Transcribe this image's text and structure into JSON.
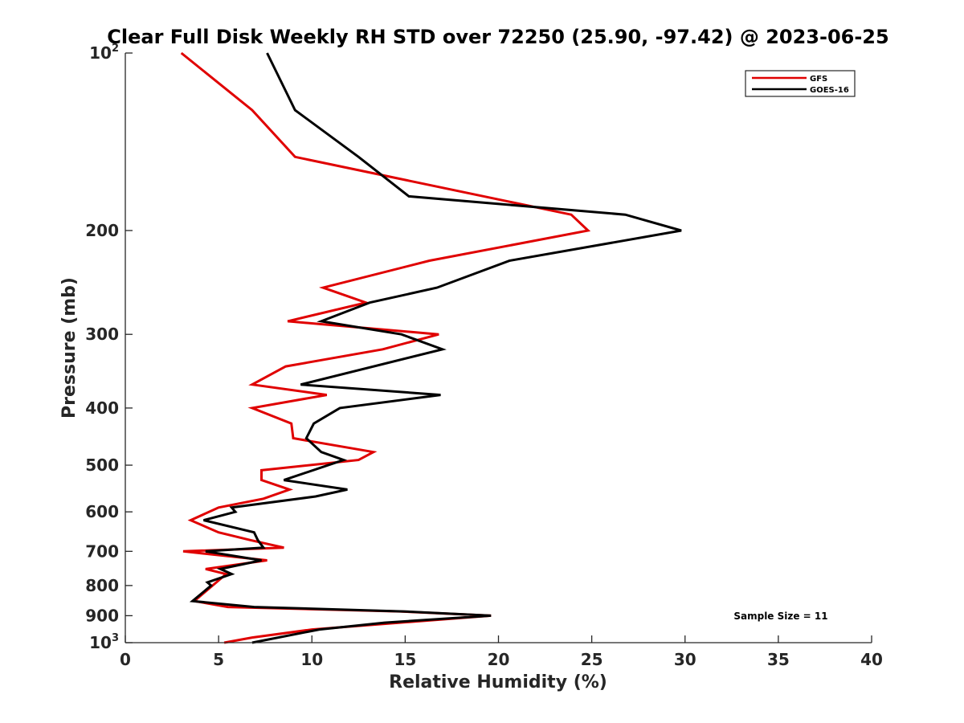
{
  "chart_data": {
    "type": "line",
    "title": "Clear Full Disk Weekly RH STD over 72250 (25.90, -97.42) @ 2023-06-25",
    "xlabel": "Relative Humidity (%)",
    "ylabel": "Pressure (mb)",
    "xlim": [
      0,
      40
    ],
    "ylim": [
      100,
      1000
    ],
    "y_scale": "log",
    "y_reversed": true,
    "grid": false,
    "legend_placement": "top-right",
    "x_ticks": [
      0,
      5,
      10,
      15,
      20,
      25,
      30,
      35,
      40
    ],
    "x_tick_labels": [
      "0",
      "5",
      "10",
      "15",
      "20",
      "25",
      "30",
      "35",
      "40"
    ],
    "y_ticks": [
      200,
      300,
      400,
      500,
      600,
      700,
      800,
      900
    ],
    "y_tick_labels": [
      "200",
      "300",
      "400",
      "500",
      "600",
      "700",
      "800",
      "900"
    ],
    "y_end_labels": {
      "top": {
        "base": "10",
        "exp": "2"
      },
      "bottom": {
        "base": "10",
        "exp": "3"
      }
    },
    "annotation": "Sample Size = 11",
    "series": [
      {
        "name": "GFS",
        "color": "#e00000",
        "points": [
          [
            3.0,
            100
          ],
          [
            6.8,
            125
          ],
          [
            9.1,
            150
          ],
          [
            23.9,
            188
          ],
          [
            24.8,
            200
          ],
          [
            16.3,
            225
          ],
          [
            10.6,
            250
          ],
          [
            12.9,
            265
          ],
          [
            8.7,
            285
          ],
          [
            16.8,
            300
          ],
          [
            13.8,
            318
          ],
          [
            8.6,
            340
          ],
          [
            6.8,
            365
          ],
          [
            10.8,
            380
          ],
          [
            6.8,
            400
          ],
          [
            8.9,
            425
          ],
          [
            9.0,
            450
          ],
          [
            13.3,
            475
          ],
          [
            12.5,
            490
          ],
          [
            7.3,
            510
          ],
          [
            7.3,
            530
          ],
          [
            8.8,
            550
          ],
          [
            7.4,
            570
          ],
          [
            5.0,
            590
          ],
          [
            3.5,
            620
          ],
          [
            5.0,
            650
          ],
          [
            6.7,
            670
          ],
          [
            8.5,
            690
          ],
          [
            3.1,
            700
          ],
          [
            7.6,
            725
          ],
          [
            4.3,
            750
          ],
          [
            5.4,
            765
          ],
          [
            3.7,
            850
          ],
          [
            5.5,
            870
          ],
          [
            14.7,
            885
          ],
          [
            19.6,
            900
          ],
          [
            10.0,
            950
          ],
          [
            6.8,
            980
          ],
          [
            5.3,
            1000
          ]
        ]
      },
      {
        "name": "GOES-16",
        "color": "#000000",
        "points": [
          [
            7.6,
            100
          ],
          [
            9.1,
            125
          ],
          [
            12.5,
            150
          ],
          [
            15.2,
            175
          ],
          [
            26.8,
            188
          ],
          [
            29.8,
            200
          ],
          [
            20.6,
            225
          ],
          [
            16.7,
            250
          ],
          [
            13.1,
            265
          ],
          [
            10.5,
            285
          ],
          [
            14.8,
            300
          ],
          [
            17.0,
            318
          ],
          [
            9.4,
            365
          ],
          [
            16.9,
            380
          ],
          [
            11.5,
            400
          ],
          [
            10.1,
            425
          ],
          [
            9.7,
            450
          ],
          [
            10.5,
            475
          ],
          [
            11.7,
            490
          ],
          [
            8.5,
            530
          ],
          [
            11.9,
            550
          ],
          [
            10.2,
            565
          ],
          [
            5.7,
            590
          ],
          [
            5.9,
            600
          ],
          [
            4.2,
            620
          ],
          [
            6.9,
            650
          ],
          [
            7.1,
            670
          ],
          [
            7.4,
            690
          ],
          [
            4.3,
            700
          ],
          [
            7.3,
            725
          ],
          [
            5.1,
            750
          ],
          [
            5.7,
            765
          ],
          [
            4.4,
            790
          ],
          [
            4.6,
            800
          ],
          [
            3.6,
            850
          ],
          [
            6.9,
            870
          ],
          [
            14.9,
            885
          ],
          [
            19.6,
            900
          ],
          [
            13.9,
            925
          ],
          [
            10.4,
            950
          ],
          [
            6.8,
            1000
          ]
        ]
      }
    ]
  }
}
